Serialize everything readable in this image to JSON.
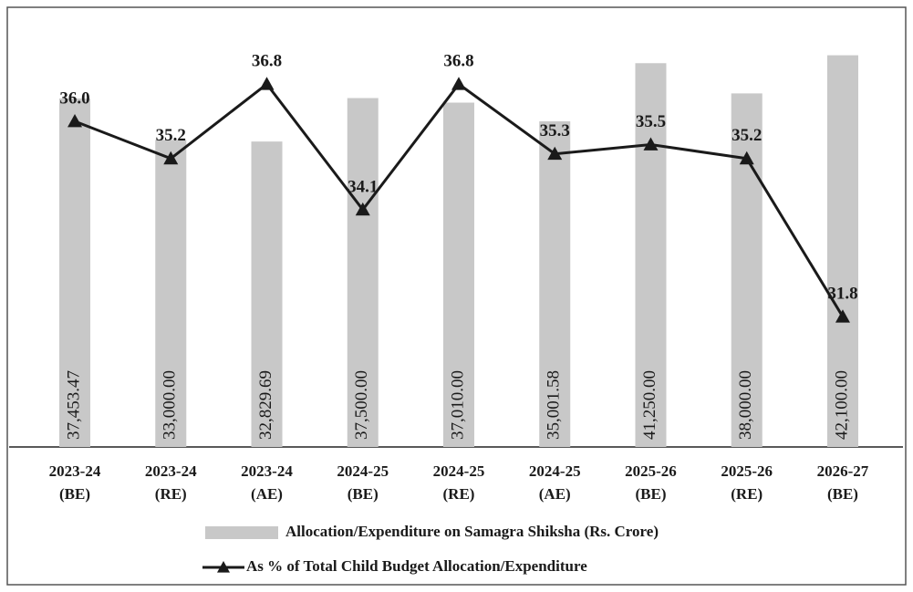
{
  "chart_data": {
    "type": "combo",
    "categories": [
      [
        "2023-24",
        "(BE)"
      ],
      [
        "2023-24",
        "(RE)"
      ],
      [
        "2023-24",
        "(AE)"
      ],
      [
        "2024-25",
        "(BE)"
      ],
      [
        "2024-25",
        "(RE)"
      ],
      [
        "2024-25",
        "(AE)"
      ],
      [
        "2025-26",
        "(BE)"
      ],
      [
        "2025-26",
        "(RE)"
      ],
      [
        "2026-27",
        "(BE)"
      ]
    ],
    "series": [
      {
        "name": "Allocation/Expenditure on Samagra Shiksha (Rs. Crore)",
        "type": "bar",
        "color": "#c8c8c8",
        "values": [
          37453.47,
          33000.0,
          32829.69,
          37500.0,
          37010.0,
          35001.58,
          41250.0,
          38000.0,
          42100.0
        ],
        "value_labels": [
          "37,453.47",
          "33,000.00",
          "32,829.69",
          "37,500.00",
          "37,010.00",
          "35,001.58",
          "41,250.00",
          "38,000.00",
          "42,100.00"
        ]
      },
      {
        "name": "As % of Total Child Budget Allocation/Expenditure",
        "type": "line",
        "axis": "y2",
        "color": "#1a1a1a",
        "values": [
          36.0,
          35.2,
          36.8,
          34.1,
          36.8,
          35.3,
          35.5,
          35.2,
          31.8
        ],
        "value_labels": [
          "36.0",
          "35.2",
          "36.8",
          "34.1",
          "36.8",
          "35.3",
          "35.5",
          "35.2",
          "31.8"
        ]
      }
    ],
    "ylim": [
      0,
      45000
    ],
    "y2lim": [
      29,
      38
    ]
  }
}
